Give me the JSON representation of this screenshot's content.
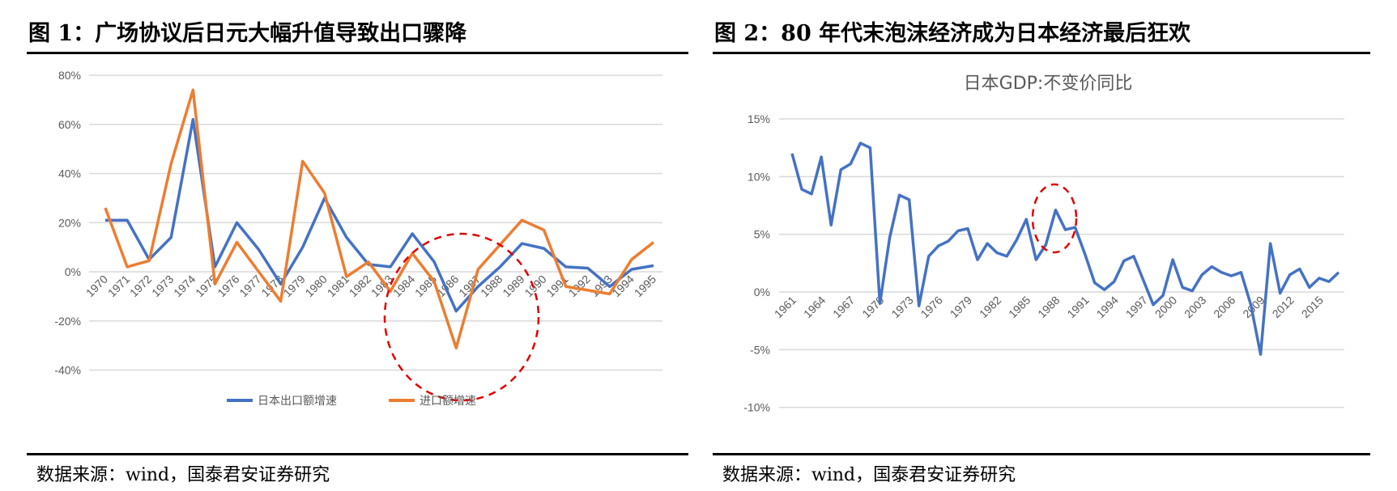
{
  "figure1": {
    "title": "图 1：广场协议后日元大幅升值导致出口骤降",
    "source": "数据来源：wind，国泰君安证券研究"
  },
  "figure2": {
    "title": "图 2：80 年代末泡沫经济成为日本经济最后狂欢",
    "source": "数据来源：wind，国泰君安证券研究"
  },
  "chart_data": [
    {
      "type": "line",
      "title": "",
      "xlabel": "",
      "ylabel": "",
      "ylim": [
        -40,
        80
      ],
      "yticks": [
        "-40%",
        "-20%",
        "0%",
        "20%",
        "40%",
        "60%",
        "80%"
      ],
      "grid": true,
      "legend": "bottom",
      "categories": [
        "1970",
        "1971",
        "1972",
        "1973",
        "1974",
        "1975",
        "1976",
        "1977",
        "1978",
        "1979",
        "1980",
        "1981",
        "1982",
        "1983",
        "1984",
        "1985",
        "1986",
        "1987",
        "1988",
        "1989",
        "1990",
        "1991",
        "1992",
        "1993",
        "1994",
        "1995"
      ],
      "series": [
        {
          "name": "日本出口额增速",
          "color": "#4472C4",
          "values": [
            21,
            21,
            5,
            14,
            62,
            2,
            20,
            9,
            -5,
            10,
            30,
            14,
            3,
            2,
            15.5,
            4,
            -16,
            -6,
            2,
            11.5,
            9.5,
            2,
            1.5,
            -6,
            1,
            2.5
          ]
        },
        {
          "name": "进口额增速",
          "color": "#ED7D31",
          "values": [
            26,
            2,
            4.5,
            44,
            74,
            -5,
            12,
            0,
            -12,
            45,
            32,
            -2,
            4,
            -8,
            7.5,
            -4,
            -31,
            1,
            11,
            21,
            17,
            -6,
            -7.5,
            -9,
            5,
            12
          ]
        }
      ],
      "annotation": {
        "shape": "dashed-circle",
        "color": "#E00000",
        "around": "1986"
      }
    },
    {
      "type": "line",
      "title": "日本GDP:不变价同比",
      "xlabel": "",
      "ylabel": "",
      "ylim": [
        -10,
        15
      ],
      "yticks": [
        "-10%",
        "-5%",
        "0%",
        "5%",
        "10%",
        "15%"
      ],
      "grid": true,
      "x_start": 1961,
      "xtick_labels": [
        "1961",
        "1964",
        "1967",
        "1970",
        "1973",
        "1976",
        "1979",
        "1982",
        "1985",
        "1988",
        "1991",
        "1994",
        "1997",
        "2000",
        "2003",
        "2006",
        "2009",
        "2012",
        "2015"
      ],
      "series": [
        {
          "color": "#4472C4",
          "values": [
            12.0,
            8.9,
            8.5,
            11.7,
            5.8,
            10.6,
            11.1,
            12.9,
            12.5,
            -1.0,
            4.7,
            8.4,
            8.0,
            -1.2,
            3.1,
            4.0,
            4.4,
            5.3,
            5.5,
            2.8,
            4.2,
            3.4,
            3.1,
            4.5,
            6.3,
            2.8,
            4.1,
            7.1,
            5.4,
            5.6,
            3.3,
            0.8,
            0.2,
            0.9,
            2.7,
            3.1,
            1.0,
            -1.1,
            -0.3,
            2.8,
            0.4,
            0.1,
            1.5,
            2.2,
            1.7,
            1.4,
            1.7,
            -1.1,
            -5.4,
            4.2,
            -0.1,
            1.5,
            2.0,
            0.4,
            1.2,
            0.9,
            1.7
          ]
        }
      ],
      "annotation": {
        "shape": "dashed-ellipse",
        "color": "#E00000",
        "around": "1988"
      }
    }
  ]
}
